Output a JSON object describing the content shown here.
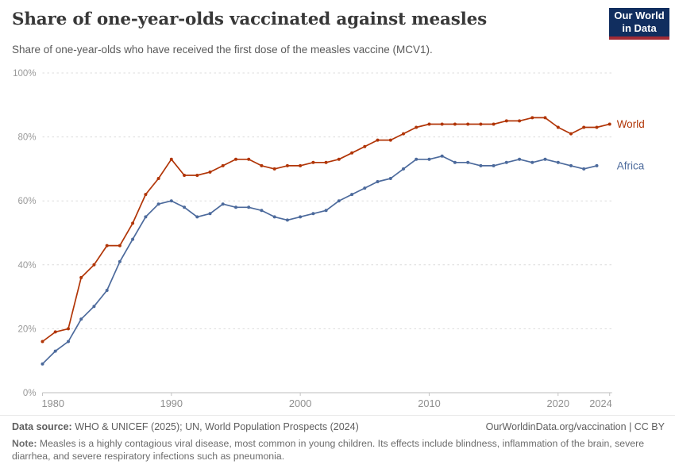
{
  "header": {
    "title": "Share of one-year-olds vaccinated against measles",
    "subtitle": "Share of one-year-olds who have received the first dose of the measles vaccine (MCV1)."
  },
  "logo": {
    "line1": "Our World",
    "line2": "in Data"
  },
  "chart_data": {
    "type": "line",
    "title": "Share of one-year-olds vaccinated against measles",
    "xlabel": "",
    "ylabel": "",
    "xlim": [
      1980,
      2024
    ],
    "ylim": [
      0,
      100
    ],
    "x_ticks": [
      1980,
      1990,
      2000,
      2010,
      2020,
      2024
    ],
    "y_ticks": [
      0,
      20,
      40,
      60,
      80,
      100
    ],
    "y_suffix": "%",
    "grid": "horizontal-dashed",
    "legend_position": "line-end-labels",
    "series": [
      {
        "name": "World",
        "color": "#B13507",
        "start_year": 1980,
        "end_year": 2024,
        "values": [
          16,
          19,
          20,
          36,
          40,
          46,
          46,
          53,
          62,
          67,
          73,
          68,
          68,
          69,
          71,
          73,
          73,
          71,
          70,
          71,
          71,
          72,
          72,
          73,
          75,
          77,
          79,
          79,
          81,
          83,
          84,
          84,
          84,
          84,
          84,
          84,
          85,
          85,
          86,
          86,
          83,
          81,
          83,
          83,
          84
        ]
      },
      {
        "name": "Africa",
        "color": "#4C6A9C",
        "start_year": 1980,
        "end_year": 2023,
        "values": [
          9,
          13,
          16,
          23,
          27,
          32,
          41,
          48,
          55,
          59,
          60,
          58,
          55,
          56,
          59,
          58,
          58,
          57,
          55,
          54,
          55,
          56,
          57,
          60,
          62,
          64,
          66,
          67,
          70,
          73,
          73,
          74,
          72,
          72,
          71,
          71,
          72,
          73,
          72,
          73,
          72,
          71,
          70,
          71
        ]
      }
    ]
  },
  "footer": {
    "source_label": "Data source:",
    "source_text": " WHO & UNICEF (2025); UN, World Population Prospects (2024)",
    "link": "OurWorldinData.org/vaccination | CC BY",
    "note_label": "Note:",
    "note_text": " Measles is a highly contagious viral disease, most common in young children. Its effects include blindness, inflammation of the brain, severe diarrhea, and severe respiratory infections such as pneumonia."
  }
}
